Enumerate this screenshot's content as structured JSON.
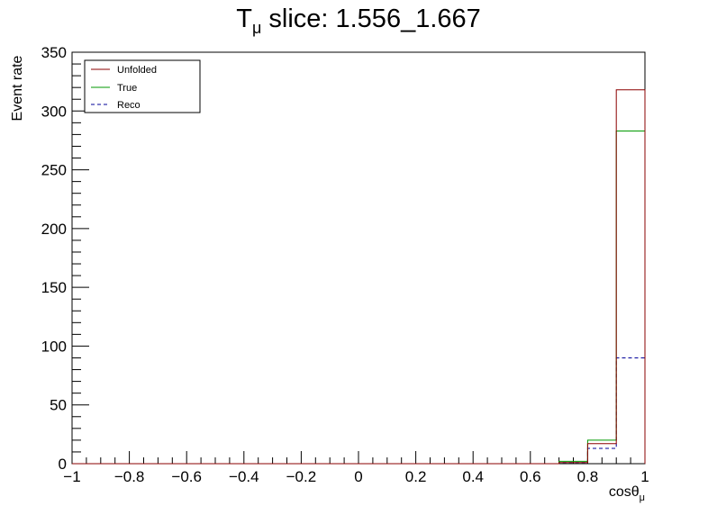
{
  "chart_data": {
    "type": "histogram",
    "title_main": "T",
    "title_sub": "μ",
    "title_rest": " slice: 1.556_1.667",
    "xlabel_main": "cosθ",
    "xlabel_sub": "μ",
    "ylabel": "Event rate",
    "xlim": [
      -1,
      1
    ],
    "ylim": [
      0,
      350
    ],
    "xticks": [
      -1,
      -0.8,
      -0.6,
      -0.4,
      -0.2,
      0,
      0.2,
      0.4,
      0.6,
      0.8,
      1
    ],
    "xtick_labels": [
      "−1",
      "−0.8",
      "−0.6",
      "−0.4",
      "−0.2",
      "0",
      "0.2",
      "0.4",
      "0.6",
      "0.8",
      "1"
    ],
    "yticks": [
      0,
      50,
      100,
      150,
      200,
      250,
      300,
      350
    ],
    "ytick_labels": [
      "0",
      "50",
      "100",
      "150",
      "200",
      "250",
      "300",
      "350"
    ],
    "bin_edges": [
      -1,
      -0.9,
      -0.8,
      -0.7,
      -0.6,
      -0.5,
      -0.4,
      -0.3,
      -0.2,
      -0.1,
      0,
      0.1,
      0.2,
      0.3,
      0.4,
      0.5,
      0.6,
      0.7,
      0.8,
      0.9,
      1
    ],
    "series": [
      {
        "name": "Unfolded",
        "color": "#8b0000",
        "style": "solid",
        "values": [
          0,
          0,
          0,
          0,
          0,
          0,
          0,
          0,
          0,
          0,
          0,
          0,
          0,
          0,
          0,
          0,
          0,
          1,
          17,
          318
        ]
      },
      {
        "name": "True",
        "color": "#009900",
        "style": "solid",
        "values": [
          0,
          0,
          0,
          0,
          0,
          0,
          0,
          0,
          0,
          0,
          0,
          0,
          0,
          0,
          0,
          0,
          0,
          2,
          20,
          283
        ]
      },
      {
        "name": "Reco",
        "color": "#000099",
        "style": "dashed",
        "values": [
          0,
          0,
          0,
          0,
          0,
          0,
          0,
          0,
          0,
          0,
          0,
          0,
          0,
          0,
          0,
          0,
          0,
          1,
          13,
          90
        ]
      }
    ],
    "legend": {
      "position": "top-left",
      "entries": [
        "Unfolded",
        "True",
        "Reco"
      ]
    }
  }
}
